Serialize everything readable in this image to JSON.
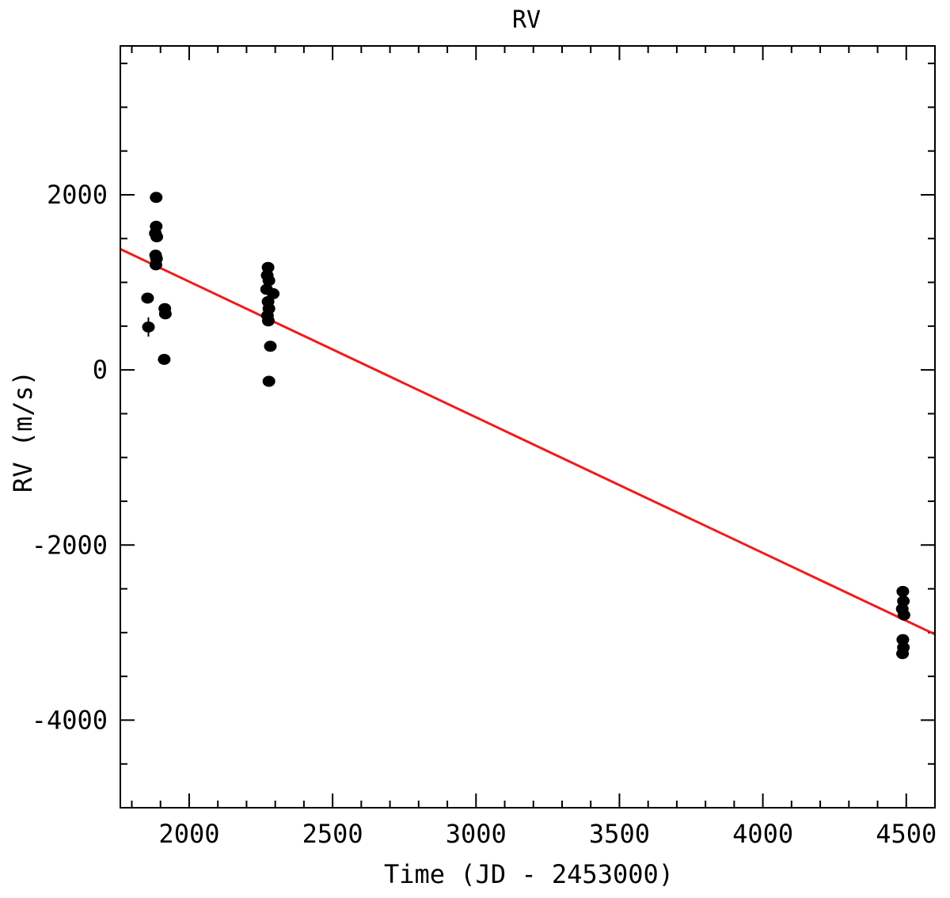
{
  "chart_data": {
    "type": "scatter",
    "title": "RV",
    "xlabel": "Time (JD - 2453000)",
    "ylabel": "RV (m/s)",
    "xlim": [
      1760,
      4600
    ],
    "ylim": [
      -5000,
      3700
    ],
    "x_ticks": [
      2000,
      2500,
      3000,
      3500,
      4000,
      4500
    ],
    "y_ticks": [
      -4000,
      -2000,
      0,
      2000
    ],
    "x_minor_step": 100,
    "y_minor_step": 500,
    "grid": false,
    "series": [
      {
        "kind": "points-with-errorbars",
        "color": "#000000",
        "points": [
          {
            "x": 1855,
            "y": 820,
            "err": 60
          },
          {
            "x": 1858,
            "y": 490,
            "err": 110
          },
          {
            "x": 1885,
            "y": 1970,
            "err": 40
          },
          {
            "x": 1885,
            "y": 1640,
            "err": 40
          },
          {
            "x": 1882,
            "y": 1560,
            "err": 40
          },
          {
            "x": 1887,
            "y": 1520,
            "err": 40
          },
          {
            "x": 1883,
            "y": 1310,
            "err": 40
          },
          {
            "x": 1886,
            "y": 1270,
            "err": 40
          },
          {
            "x": 1884,
            "y": 1200,
            "err": 40
          },
          {
            "x": 1915,
            "y": 700,
            "err": 40
          },
          {
            "x": 1917,
            "y": 640,
            "err": 40
          },
          {
            "x": 1913,
            "y": 120,
            "err": 40
          },
          {
            "x": 2275,
            "y": 1170,
            "err": 40
          },
          {
            "x": 2272,
            "y": 1080,
            "err": 40
          },
          {
            "x": 2278,
            "y": 1020,
            "err": 40
          },
          {
            "x": 2270,
            "y": 920,
            "err": 40
          },
          {
            "x": 2293,
            "y": 870,
            "err": 40
          },
          {
            "x": 2275,
            "y": 780,
            "err": 40
          },
          {
            "x": 2278,
            "y": 700,
            "err": 40
          },
          {
            "x": 2273,
            "y": 620,
            "err": 40
          },
          {
            "x": 2276,
            "y": 560,
            "err": 40
          },
          {
            "x": 2283,
            "y": 270,
            "err": 40
          },
          {
            "x": 2278,
            "y": -130,
            "err": 40
          },
          {
            "x": 4488,
            "y": -2530,
            "err": 40
          },
          {
            "x": 4490,
            "y": -2640,
            "err": 40
          },
          {
            "x": 4486,
            "y": -2730,
            "err": 40
          },
          {
            "x": 4492,
            "y": -2800,
            "err": 40
          },
          {
            "x": 4488,
            "y": -3080,
            "err": 40
          },
          {
            "x": 4490,
            "y": -3170,
            "err": 40
          },
          {
            "x": 4487,
            "y": -3240,
            "err": 40
          }
        ]
      },
      {
        "kind": "fit-line",
        "color": "#ee1c1c",
        "points": [
          {
            "x": 1760,
            "y": 1380
          },
          {
            "x": 4600,
            "y": -3020
          }
        ]
      }
    ]
  }
}
